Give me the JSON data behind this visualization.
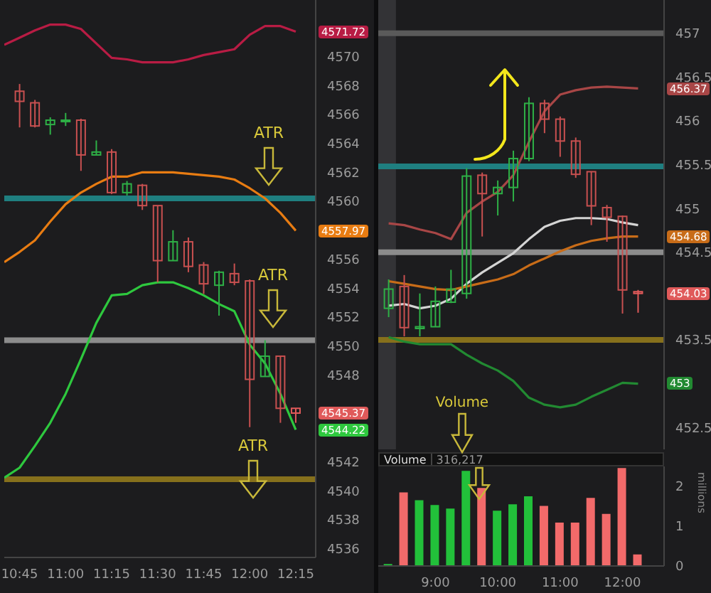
{
  "chart_data": [
    {
      "type": "candlestick",
      "x": [
        10.75,
        10.8333,
        10.9167,
        11.0,
        11.0833,
        11.1667,
        11.25,
        11.3333,
        11.4167,
        11.5,
        11.5833,
        11.6667,
        11.75,
        11.8333,
        11.9167,
        12.0,
        12.0833,
        12.1667,
        12.25
      ],
      "ohlc": [
        [
          4567.6,
          4568.1,
          4565.1,
          4566.9
        ],
        [
          4566.8,
          4567.0,
          4565.1,
          4565.2
        ],
        [
          4565.3,
          4565.8,
          4564.6,
          4565.6
        ],
        [
          4565.5,
          4566.1,
          4565.2,
          4565.6
        ],
        [
          4565.6,
          4565.7,
          4562.1,
          4563.2
        ],
        [
          4563.2,
          4564.2,
          4563.2,
          4563.4
        ],
        [
          4563.4,
          4563.6,
          4560.5,
          4560.6
        ],
        [
          4560.6,
          4561.4,
          4560.4,
          4561.2
        ],
        [
          4561.1,
          4561.2,
          4559.4,
          4559.7
        ],
        [
          4559.7,
          4559.7,
          4554.4,
          4555.9
        ],
        [
          4555.9,
          4558.0,
          4555.9,
          4557.2
        ],
        [
          4557.2,
          4557.5,
          4555.1,
          4555.5
        ],
        [
          4555.6,
          4555.8,
          4553.6,
          4554.3
        ],
        [
          4554.2,
          4555.2,
          4552.1,
          4555.1
        ],
        [
          4555.0,
          4555.7,
          4554.2,
          4554.4
        ],
        [
          4554.5,
          4554.6,
          4544.4,
          4547.7
        ],
        [
          4547.9,
          4550.4,
          4547.9,
          4549.3
        ],
        [
          4549.3,
          4549.3,
          4544.7,
          4545.7
        ],
        [
          4545.7,
          4545.7,
          4544.7,
          4545.37
        ]
      ],
      "colors": [
        "#c85050",
        "#c85050",
        "#2eb046",
        "#2eb046",
        "#c85050",
        "#2eb046",
        "#c85050",
        "#2eb046",
        "#c85050",
        "#c85050",
        "#2eb046",
        "#c85050",
        "#c85050",
        "#2eb046",
        "#c85050",
        "#c85050",
        "#2eb046",
        "#c85050",
        "#e05a5a"
      ],
      "series": [
        {
          "type": "line",
          "color": "#b81c44",
          "x": [
            10.6667,
            10.75,
            10.8333,
            10.9167,
            11.0,
            11.0833,
            11.1667,
            11.25,
            11.3333,
            11.4167,
            11.5,
            11.5833,
            11.6667,
            11.75,
            11.8333,
            11.9167,
            12.0,
            12.0833,
            12.1667,
            12.25
          ],
          "values": [
            4570.8,
            4571.3,
            4571.8,
            4572.2,
            4572.2,
            4571.9,
            4570.9,
            4569.9,
            4569.8,
            4569.6,
            4569.6,
            4569.6,
            4569.8,
            4570.1,
            4570.3,
            4570.5,
            4571.5,
            4572.1,
            4572.1,
            4571.72
          ]
        },
        {
          "type": "line",
          "color": "#e87c12",
          "x": [
            10.6667,
            10.75,
            10.8333,
            10.9167,
            11.0,
            11.0833,
            11.1667,
            11.25,
            11.3333,
            11.4167,
            11.5,
            11.5833,
            11.6667,
            11.75,
            11.8333,
            11.9167,
            12.0,
            12.0833,
            12.1667,
            12.25
          ],
          "values": [
            4555.8,
            4556.5,
            4557.3,
            4558.6,
            4559.8,
            4560.6,
            4561.2,
            4561.7,
            4561.7,
            4562.0,
            4562.0,
            4562.0,
            4561.9,
            4561.8,
            4561.7,
            4561.5,
            4560.9,
            4560.2,
            4559.2,
            4557.97
          ]
        },
        {
          "type": "line",
          "color": "#2ec83e",
          "x": [
            10.6667,
            10.75,
            10.8333,
            10.9167,
            11.0,
            11.0833,
            11.1667,
            11.25,
            11.3333,
            11.4167,
            11.5,
            11.5833,
            11.6667,
            11.75,
            11.8333,
            11.9167,
            12.0,
            12.0833,
            12.1667,
            12.25
          ],
          "values": [
            4540.9,
            4541.6,
            4543.1,
            4544.7,
            4546.7,
            4549.1,
            4551.6,
            4553.5,
            4553.6,
            4554.2,
            4554.4,
            4554.4,
            4554.0,
            4553.5,
            4552.9,
            4552.4,
            4550.1,
            4548.8,
            4546.7,
            4544.22
          ]
        }
      ],
      "xlim": [
        10.6667,
        12.3583
      ],
      "xticks": [
        {
          "value": 10.75,
          "label": "10:45"
        },
        {
          "value": 11,
          "label": "11:00"
        },
        {
          "value": 11.25,
          "label": "11:15"
        },
        {
          "value": 11.5,
          "label": "11:30"
        },
        {
          "value": 11.75,
          "label": "11:45"
        },
        {
          "value": 12,
          "label": "12:00"
        },
        {
          "value": 12.25,
          "label": "12:15"
        }
      ],
      "ylim": [
        4535.4,
        4573.9
      ],
      "yticks": [
        4536,
        4538,
        4540,
        4542,
        4548,
        4550,
        4552,
        4554,
        4556,
        4560,
        4562,
        4564,
        4566,
        4568,
        4570
      ],
      "ref_lines": [
        {
          "axis": "y",
          "value": 4560.2,
          "color": "#1f7f80"
        },
        {
          "axis": "y",
          "value": 4550.4,
          "color": "#8c8c8c"
        },
        {
          "axis": "y",
          "value": 4540.8,
          "color": "#86701c"
        }
      ],
      "annotations": [
        "4571.72",
        "4557.97",
        "4545.37",
        "4544.22",
        "ATR",
        "ATR",
        "ATR"
      ]
    },
    {
      "type": "candlestick",
      "x": [
        8.25,
        8.5,
        8.75,
        9.0,
        9.25,
        9.5,
        9.75,
        10.0,
        10.25,
        10.5,
        10.75,
        11.0,
        11.25,
        11.5,
        11.75,
        12.0,
        12.25
      ],
      "ohlc": [
        [
          453.86,
          454.19,
          453.76,
          454.08
        ],
        [
          454.11,
          454.24,
          453.54,
          453.64
        ],
        [
          453.63,
          454.03,
          453.54,
          453.65
        ],
        [
          453.65,
          454.11,
          453.65,
          453.94
        ],
        [
          453.93,
          454.3,
          453.92,
          454.08
        ],
        [
          454.03,
          455.46,
          453.97,
          455.37
        ],
        [
          455.38,
          455.41,
          454.68,
          455.17
        ],
        [
          455.17,
          455.32,
          454.92,
          455.24
        ],
        [
          455.24,
          455.66,
          455.08,
          455.57
        ],
        [
          455.57,
          456.27,
          455.54,
          456.2
        ],
        [
          456.2,
          456.24,
          455.86,
          456.02
        ],
        [
          456.02,
          456.05,
          455.59,
          455.77
        ],
        [
          455.77,
          455.81,
          455.35,
          455.39
        ],
        [
          455.42,
          455.42,
          454.81,
          455.03
        ],
        [
          455.01,
          455.04,
          454.62,
          454.9
        ],
        [
          454.91,
          454.92,
          453.8,
          454.07
        ],
        [
          454.05,
          454.07,
          453.81,
          454.03
        ]
      ],
      "colors": [
        "#2eb046",
        "#c85050",
        "#2eb046",
        "#2eb046",
        "#2eb046",
        "#2eb046",
        "#c85050",
        "#2eb046",
        "#2eb046",
        "#2eb046",
        "#c85050",
        "#c85050",
        "#c85050",
        "#c85050",
        "#c85050",
        "#c85050",
        "#e05a5a"
      ],
      "series": [
        {
          "type": "line",
          "color": "#a84646",
          "x": [
            8.25,
            8.5,
            8.75,
            9.0,
            9.25,
            9.5,
            9.75,
            10.0,
            10.25,
            10.5,
            10.75,
            11.0,
            11.25,
            11.5,
            11.75,
            12.0,
            12.25
          ],
          "values": [
            454.83,
            454.81,
            454.76,
            454.72,
            454.65,
            454.95,
            455.08,
            455.19,
            455.38,
            455.76,
            456.11,
            456.3,
            456.35,
            456.38,
            456.39,
            456.38,
            456.37
          ]
        },
        {
          "type": "line",
          "color": "#d4d4d4",
          "x": [
            8.25,
            8.5,
            8.75,
            9.0,
            9.25,
            9.5,
            9.75,
            10.0,
            10.25,
            10.5,
            10.75,
            11.0,
            11.25,
            11.5,
            11.75,
            12.0,
            12.25
          ],
          "values": [
            453.89,
            453.91,
            453.86,
            453.89,
            453.97,
            454.14,
            454.27,
            454.38,
            454.49,
            454.65,
            454.79,
            454.86,
            454.89,
            454.89,
            454.88,
            454.84,
            454.81
          ]
        },
        {
          "type": "line",
          "color": "#c86c18",
          "x": [
            8.25,
            8.5,
            8.75,
            9.0,
            9.25,
            9.5,
            9.75,
            10.0,
            10.25,
            10.5,
            10.75,
            11.0,
            11.25,
            11.5,
            11.75,
            12.0,
            12.25
          ],
          "values": [
            454.17,
            454.14,
            454.11,
            454.08,
            454.07,
            454.11,
            454.15,
            454.19,
            454.25,
            454.35,
            454.43,
            454.51,
            454.58,
            454.63,
            454.66,
            454.68,
            454.68
          ]
        },
        {
          "type": "line",
          "color": "#228a32",
          "x": [
            8.25,
            8.5,
            8.75,
            9.0,
            9.25,
            9.5,
            9.75,
            10.0,
            10.25,
            10.5,
            10.75,
            11.0,
            11.25,
            11.5,
            11.75,
            12.0,
            12.25
          ],
          "values": [
            453.53,
            453.48,
            453.45,
            453.45,
            453.45,
            453.33,
            453.23,
            453.15,
            453.03,
            452.84,
            452.76,
            452.73,
            452.76,
            452.85,
            452.93,
            453.01,
            453
          ]
        }
      ],
      "xlim": [
        8.0833,
        12.6667
      ],
      "tick_labels": "y",
      "ylim": [
        452.25,
        457.38
      ],
      "yticks": [
        452.5,
        453.5,
        454.5,
        455,
        455.5,
        456,
        456.5,
        457
      ],
      "ref_lines": [
        {
          "axis": "y",
          "value": 457,
          "color": "#5a5a5a"
        },
        {
          "axis": "y",
          "value": 455.48,
          "color": "#1f7f80"
        },
        {
          "axis": "y",
          "value": 454.5,
          "color": "#8c8c8c"
        },
        {
          "axis": "y",
          "value": 453.5,
          "color": "#86701c"
        }
      ],
      "bands": [
        {
          "axis": "x",
          "from": 8.0833,
          "to": 8.3667,
          "color": "#3a3a3c"
        }
      ],
      "annotations": [
        "456.37",
        "454.68",
        "454.03",
        "453"
      ]
    },
    {
      "type": "bar",
      "title": "Volume",
      "subtitle": "316,217",
      "ylabel": "millions",
      "x": [
        8.25,
        8.5,
        8.75,
        9.0,
        9.25,
        9.5,
        9.75,
        10.0,
        10.25,
        10.5,
        10.75,
        11.0,
        11.25,
        11.5,
        11.75,
        12.0,
        12.25
      ],
      "values": [
        0.05,
        1.85,
        1.65,
        1.53,
        1.44,
        2.39,
        1.96,
        1.39,
        1.55,
        1.75,
        1.51,
        1.09,
        1.09,
        1.71,
        1.31,
        2.46,
        0.29
      ],
      "colors": [
        "#22c03a",
        "#f26a6a",
        "#22c03a",
        "#22c03a",
        "#22c03a",
        "#22c03a",
        "#f26a6a",
        "#22c03a",
        "#22c03a",
        "#22c03a",
        "#f26a6a",
        "#f26a6a",
        "#f26a6a",
        "#f26a6a",
        "#f26a6a",
        "#f26a6a",
        "#f26a6a"
      ],
      "xlim": [
        8.0833,
        12.6667
      ],
      "xticks": [
        {
          "value": 9,
          "label": "9:00"
        },
        {
          "value": 10,
          "label": "10:00"
        },
        {
          "value": 11,
          "label": "11:00"
        },
        {
          "value": 12,
          "label": "12:00"
        }
      ],
      "ylim": [
        0,
        2.5
      ],
      "yticks": [
        0,
        1,
        2
      ],
      "annotations": [
        "Volume"
      ]
    }
  ]
}
